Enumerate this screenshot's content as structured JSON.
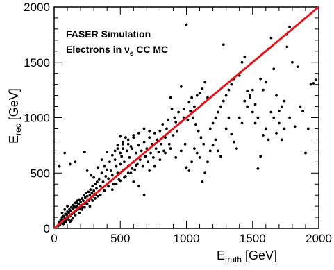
{
  "chart_data": {
    "type": "scatter",
    "annotations": [
      "FASER Simulation",
      "Electrons in ν",
      "e",
      " CC MC"
    ],
    "xlabel": {
      "main": "E",
      "sub": "truth",
      "unit": " [GeV]"
    },
    "ylabel": {
      "main": "E",
      "sub": "rec",
      "unit": " [GeV]"
    },
    "xlim": [
      0,
      2000
    ],
    "ylim": [
      0,
      2000
    ],
    "x_ticks": [
      "0",
      "500",
      "1000",
      "1500",
      "2000"
    ],
    "y_ticks": [
      "0",
      "500",
      "1000",
      "1500",
      "2000"
    ],
    "grid": false,
    "reference_line": {
      "from": [
        0,
        0
      ],
      "to": [
        2000,
        2000
      ],
      "color": "#e8141c"
    },
    "marker_color": "#000000",
    "points": [
      [
        30,
        20
      ],
      [
        35,
        45
      ],
      [
        40,
        60
      ],
      [
        45,
        35
      ],
      [
        50,
        80
      ],
      [
        55,
        50
      ],
      [
        60,
        100
      ],
      [
        65,
        70
      ],
      [
        70,
        110
      ],
      [
        75,
        60
      ],
      [
        80,
        90
      ],
      [
        85,
        130
      ],
      [
        90,
        75
      ],
      [
        95,
        120
      ],
      [
        100,
        150
      ],
      [
        105,
        95
      ],
      [
        110,
        140
      ],
      [
        115,
        170
      ],
      [
        120,
        110
      ],
      [
        125,
        160
      ],
      [
        130,
        190
      ],
      [
        135,
        130
      ],
      [
        140,
        180
      ],
      [
        145,
        210
      ],
      [
        150,
        140
      ],
      [
        155,
        190
      ],
      [
        160,
        230
      ],
      [
        165,
        160
      ],
      [
        170,
        200
      ],
      [
        175,
        250
      ],
      [
        180,
        170
      ],
      [
        185,
        220
      ],
      [
        190,
        260
      ],
      [
        195,
        180
      ],
      [
        200,
        240
      ],
      [
        205,
        210
      ],
      [
        210,
        270
      ],
      [
        215,
        190
      ],
      [
        220,
        250
      ],
      [
        225,
        300
      ],
      [
        230,
        220
      ],
      [
        235,
        280
      ],
      [
        240,
        320
      ],
      [
        245,
        240
      ],
      [
        250,
        290
      ],
      [
        255,
        260
      ],
      [
        260,
        330
      ],
      [
        265,
        250
      ],
      [
        270,
        300
      ],
      [
        275,
        350
      ],
      [
        280,
        270
      ],
      [
        285,
        320
      ],
      [
        290,
        380
      ],
      [
        295,
        290
      ],
      [
        300,
        340
      ],
      [
        305,
        310
      ],
      [
        310,
        400
      ],
      [
        315,
        300
      ],
      [
        320,
        360
      ],
      [
        325,
        420
      ],
      [
        60,
        140
      ],
      [
        80,
        170
      ],
      [
        100,
        200
      ],
      [
        120,
        60
      ],
      [
        140,
        90
      ],
      [
        160,
        120
      ],
      [
        70,
        40
      ],
      [
        90,
        55
      ],
      [
        110,
        80
      ],
      [
        130,
        70
      ],
      [
        150,
        200
      ],
      [
        170,
        230
      ],
      [
        190,
        140
      ],
      [
        210,
        170
      ],
      [
        230,
        190
      ],
      [
        250,
        220
      ],
      [
        270,
        200
      ],
      [
        290,
        250
      ],
      [
        310,
        270
      ],
      [
        330,
        290
      ],
      [
        40,
        560
      ],
      [
        80,
        680
      ],
      [
        120,
        580
      ],
      [
        160,
        600
      ],
      [
        230,
        690
      ],
      [
        250,
        520
      ],
      [
        280,
        480
      ],
      [
        300,
        460
      ],
      [
        330,
        550
      ],
      [
        340,
        440
      ],
      [
        350,
        380
      ],
      [
        360,
        500
      ],
      [
        370,
        420
      ],
      [
        380,
        560
      ],
      [
        390,
        470
      ],
      [
        400,
        530
      ],
      [
        410,
        450
      ],
      [
        420,
        600
      ],
      [
        430,
        520
      ],
      [
        440,
        480
      ],
      [
        450,
        400
      ],
      [
        460,
        620
      ],
      [
        470,
        560
      ],
      [
        480,
        500
      ],
      [
        490,
        440
      ],
      [
        500,
        580
      ],
      [
        510,
        650
      ],
      [
        520,
        520
      ],
      [
        530,
        600
      ],
      [
        540,
        470
      ],
      [
        550,
        700
      ],
      [
        560,
        560
      ],
      [
        570,
        640
      ],
      [
        580,
        500
      ],
      [
        590,
        720
      ],
      [
        600,
        600
      ],
      [
        610,
        530
      ],
      [
        620,
        680
      ],
      [
        630,
        580
      ],
      [
        640,
        750
      ],
      [
        650,
        620
      ],
      [
        660,
        700
      ],
      [
        670,
        560
      ],
      [
        680,
        780
      ],
      [
        690,
        650
      ],
      [
        700,
        720
      ],
      [
        710,
        600
      ],
      [
        720,
        820
      ],
      [
        730,
        680
      ],
      [
        740,
        760
      ],
      [
        750,
        640
      ],
      [
        760,
        860
      ],
      [
        770,
        720
      ],
      [
        780,
        800
      ],
      [
        790,
        690
      ],
      [
        800,
        880
      ],
      [
        810,
        760
      ],
      [
        820,
        940
      ],
      [
        830,
        700
      ],
      [
        840,
        820
      ],
      [
        850,
        900
      ],
      [
        860,
        980
      ],
      [
        870,
        760
      ],
      [
        880,
        1180
      ],
      [
        890,
        1080
      ],
      [
        900,
        840
      ],
      [
        910,
        1000
      ],
      [
        920,
        960
      ],
      [
        930,
        880
      ],
      [
        940,
        1050
      ],
      [
        500,
        830
      ],
      [
        520,
        780
      ],
      [
        540,
        820
      ],
      [
        560,
        760
      ],
      [
        580,
        740
      ],
      [
        600,
        820
      ],
      [
        460,
        700
      ],
      [
        480,
        750
      ],
      [
        500,
        680
      ],
      [
        520,
        720
      ],
      [
        350,
        300
      ],
      [
        380,
        340
      ],
      [
        410,
        380
      ],
      [
        440,
        350
      ],
      [
        470,
        400
      ],
      [
        500,
        430
      ],
      [
        530,
        460
      ],
      [
        560,
        500
      ],
      [
        590,
        540
      ],
      [
        620,
        570
      ],
      [
        360,
        620
      ],
      [
        400,
        690
      ],
      [
        440,
        660
      ],
      [
        480,
        720
      ],
      [
        520,
        760
      ],
      [
        560,
        800
      ],
      [
        600,
        840
      ],
      [
        640,
        860
      ],
      [
        680,
        900
      ],
      [
        720,
        880
      ],
      [
        600,
        420
      ],
      [
        640,
        380
      ],
      [
        680,
        300
      ],
      [
        720,
        520
      ],
      [
        760,
        560
      ],
      [
        800,
        620
      ],
      [
        840,
        680
      ],
      [
        880,
        720
      ],
      [
        920,
        640
      ],
      [
        960,
        700
      ],
      [
        980,
        1000
      ],
      [
        1000,
        1840
      ],
      [
        1020,
        1140
      ],
      [
        1040,
        1180
      ],
      [
        1060,
        1100
      ],
      [
        1080,
        1200
      ],
      [
        1100,
        1220
      ],
      [
        1120,
        1260
      ],
      [
        1140,
        1320
      ],
      [
        1160,
        1180
      ],
      [
        960,
        1280
      ],
      [
        980,
        1080
      ],
      [
        990,
        760
      ],
      [
        1010,
        980
      ],
      [
        1030,
        1060
      ],
      [
        1050,
        1000
      ],
      [
        1070,
        940
      ],
      [
        1090,
        880
      ],
      [
        1110,
        820
      ],
      [
        1130,
        760
      ],
      [
        1000,
        550
      ],
      [
        1020,
        520
      ],
      [
        1040,
        600
      ],
      [
        1060,
        720
      ],
      [
        1080,
        680
      ],
      [
        1100,
        640
      ],
      [
        1120,
        420
      ],
      [
        1140,
        500
      ],
      [
        1160,
        600
      ],
      [
        1180,
        700
      ],
      [
        1180,
        900
      ],
      [
        1200,
        950
      ],
      [
        1220,
        1000
      ],
      [
        1240,
        1050
      ],
      [
        1260,
        1100
      ],
      [
        1280,
        1150
      ],
      [
        1300,
        1200
      ],
      [
        1320,
        1250
      ],
      [
        1340,
        1300
      ],
      [
        1360,
        1350
      ],
      [
        1200,
        750
      ],
      [
        1220,
        800
      ],
      [
        1240,
        700
      ],
      [
        1260,
        650
      ],
      [
        1280,
        1660
      ],
      [
        1300,
        900
      ],
      [
        1320,
        1000
      ],
      [
        1340,
        850
      ],
      [
        1360,
        780
      ],
      [
        1380,
        720
      ],
      [
        1400,
        1380
      ],
      [
        1420,
        1500
      ],
      [
        1440,
        1550
      ],
      [
        1460,
        1100
      ],
      [
        1480,
        1200
      ],
      [
        1500,
        1050
      ],
      [
        1520,
        950
      ],
      [
        1540,
        1000
      ],
      [
        1560,
        1350
      ],
      [
        1580,
        1250
      ],
      [
        1400,
        1000
      ],
      [
        1420,
        950
      ],
      [
        1440,
        1150
      ],
      [
        1460,
        1240
      ],
      [
        1480,
        1180
      ],
      [
        1500,
        1250
      ],
      [
        1520,
        1120
      ],
      [
        1540,
        540
      ],
      [
        1560,
        650
      ],
      [
        1580,
        840
      ],
      [
        1600,
        1320
      ],
      [
        1620,
        1620
      ],
      [
        1640,
        1720
      ],
      [
        1660,
        1440
      ],
      [
        1680,
        1200
      ],
      [
        1700,
        1060
      ],
      [
        1720,
        800
      ],
      [
        1740,
        900
      ],
      [
        1760,
        1640
      ],
      [
        1780,
        1820
      ],
      [
        1800,
        1500
      ],
      [
        1820,
        920
      ],
      [
        1840,
        1460
      ],
      [
        1860,
        1100
      ],
      [
        1880,
        1060
      ],
      [
        1900,
        680
      ],
      [
        1920,
        900
      ],
      [
        1940,
        1300
      ],
      [
        1960,
        1310
      ],
      [
        1980,
        1340
      ],
      [
        1600,
        900
      ],
      [
        1620,
        800
      ],
      [
        1640,
        1050
      ],
      [
        1660,
        1000
      ],
      [
        1680,
        860
      ],
      [
        1700,
        950
      ],
      [
        1720,
        1100
      ],
      [
        1740,
        1150
      ],
      [
        1760,
        1750
      ],
      [
        1780,
        1000
      ]
    ]
  }
}
